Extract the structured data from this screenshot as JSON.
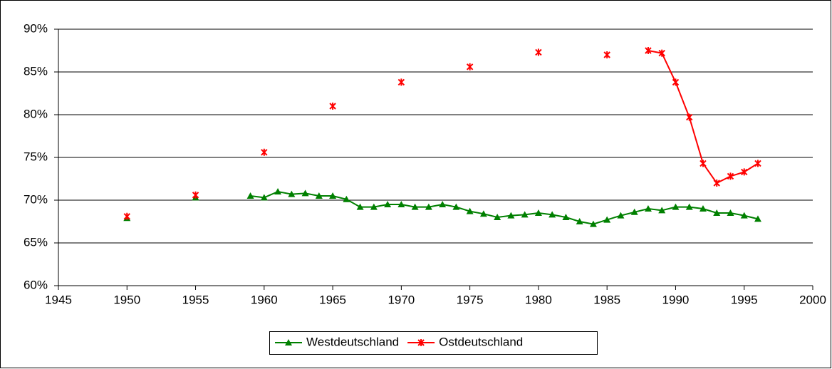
{
  "chart_data": {
    "type": "line",
    "x": [
      1950,
      1951,
      1952,
      1953,
      1954,
      1955,
      1956,
      1957,
      1958,
      1959,
      1960,
      1961,
      1962,
      1963,
      1964,
      1965,
      1966,
      1967,
      1968,
      1969,
      1970,
      1971,
      1972,
      1973,
      1974,
      1975,
      1976,
      1977,
      1978,
      1979,
      1980,
      1981,
      1982,
      1983,
      1984,
      1985,
      1986,
      1987,
      1988,
      1989,
      1990,
      1991,
      1992,
      1993,
      1994,
      1995,
      1996
    ],
    "series": [
      {
        "name": "Westdeutschland",
        "color": "#008000",
        "marker": "triangle",
        "values": [
          67.9,
          null,
          null,
          null,
          null,
          70.3,
          null,
          null,
          null,
          70.5,
          70.3,
          71.0,
          70.7,
          70.8,
          70.5,
          70.5,
          70.1,
          69.2,
          69.2,
          69.5,
          69.5,
          69.2,
          69.2,
          69.5,
          69.2,
          68.7,
          68.4,
          68.0,
          68.2,
          68.3,
          68.5,
          68.3,
          68.0,
          67.5,
          67.2,
          67.7,
          68.2,
          68.6,
          69.0,
          68.8,
          69.2,
          69.2,
          69.0,
          68.5,
          68.5,
          68.2,
          67.8
        ]
      },
      {
        "name": "Ostdeutschland",
        "color": "#ff0000",
        "marker": "star",
        "values": [
          68.1,
          null,
          null,
          null,
          null,
          70.6,
          null,
          null,
          null,
          null,
          75.6,
          null,
          null,
          null,
          null,
          81.0,
          null,
          null,
          null,
          null,
          83.8,
          null,
          null,
          null,
          null,
          85.6,
          null,
          null,
          null,
          null,
          87.3,
          null,
          null,
          null,
          null,
          87.0,
          null,
          null,
          87.5,
          87.2,
          83.8,
          79.7,
          74.3,
          72.0,
          72.8,
          73.3,
          74.3
        ]
      }
    ],
    "xlim": [
      1945,
      2000
    ],
    "xticks": [
      1945,
      1950,
      1955,
      1960,
      1965,
      1970,
      1975,
      1980,
      1985,
      1990,
      1995,
      2000
    ],
    "ylim": [
      60,
      90
    ],
    "yticks": [
      {
        "value": 60,
        "label": "60%"
      },
      {
        "value": 65,
        "label": "65%"
      },
      {
        "value": 70,
        "label": "70%"
      },
      {
        "value": 75,
        "label": "75%"
      },
      {
        "value": 80,
        "label": "80%"
      },
      {
        "value": 85,
        "label": "85%"
      },
      {
        "value": 90,
        "label": "90%"
      }
    ],
    "grid": true,
    "legend": "bottom"
  }
}
